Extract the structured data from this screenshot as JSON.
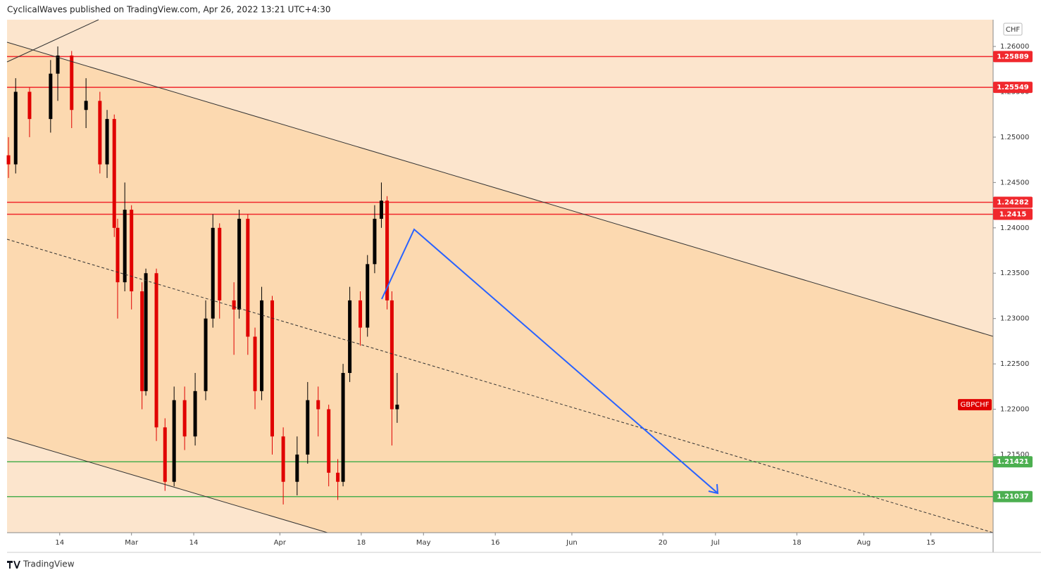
{
  "chart_data": {
    "type": "candlestick",
    "title": "CyclicalWaves published on TradingView.com, Apr 26, 2022 13:21 UTC+4:30",
    "footer": "TradingView",
    "y_unit": "CHF",
    "xlim": [
      34,
      240
    ],
    "xticks": [
      {
        "value": 45,
        "label": "14"
      },
      {
        "value": 60,
        "label": "Mar"
      },
      {
        "value": 73,
        "label": "14"
      },
      {
        "value": 91,
        "label": "Apr"
      },
      {
        "value": 108,
        "label": "18"
      },
      {
        "value": 121,
        "label": "May"
      },
      {
        "value": 136,
        "label": "16"
      },
      {
        "value": 152,
        "label": "Jun"
      },
      {
        "value": 171,
        "label": "20"
      },
      {
        "value": 182,
        "label": "Jul"
      },
      {
        "value": 199,
        "label": "18"
      },
      {
        "value": 213,
        "label": "Aug"
      },
      {
        "value": 227,
        "label": "15"
      }
    ],
    "ylim": [
      1.20639,
      1.26295
    ],
    "yticks": [
      {
        "value": 1.26,
        "label": "1.26000"
      },
      {
        "value": 1.255,
        "label": "1.25500"
      },
      {
        "value": 1.25,
        "label": "1.25000"
      },
      {
        "value": 1.245,
        "label": "1.24500"
      },
      {
        "value": 1.24,
        "label": "1.24000"
      },
      {
        "value": 1.235,
        "label": "1.23500"
      },
      {
        "value": 1.23,
        "label": "1.23000"
      },
      {
        "value": 1.225,
        "label": "1.22500"
      },
      {
        "value": 1.22,
        "label": "1.22000"
      },
      {
        "value": 1.215,
        "label": "1.21500"
      }
    ],
    "levels": [
      {
        "value": 1.25889,
        "color": "#f0282d"
      },
      {
        "value": 1.25549,
        "color": "#f0282d"
      },
      {
        "value": 1.24282,
        "color": "#f0282d"
      },
      {
        "value": 1.2415,
        "color": "#f0282d"
      },
      {
        "value": 1.21421,
        "color": "#4caf50"
      },
      {
        "value": 1.21037,
        "color": "#4caf50"
      }
    ],
    "series": [
      {
        "name": "GBPCHF",
        "label_color": "#e00000",
        "up_color": "#000000",
        "down_color": "#e00000",
        "x": [
          34.3,
          35.8,
          38.7,
          43.1,
          44.6,
          47.5,
          50.5,
          53.4,
          54.9,
          56.4,
          57.1,
          58.6,
          60.0,
          62.2,
          63.0,
          65.2,
          67.0,
          68.9,
          71.1,
          73.3,
          75.5,
          77.0,
          78.4,
          81.4,
          82.5,
          84.3,
          85.8,
          87.2,
          89.4,
          91.7,
          94.6,
          96.8,
          99.0,
          101.2,
          103.1,
          104.2,
          105.6,
          107.8,
          109.3,
          110.8,
          112.2,
          113.4,
          114.4,
          115.5
        ],
        "open": [
          1.248,
          1.247,
          1.255,
          1.252,
          1.257,
          1.259,
          1.253,
          1.254,
          1.247,
          1.252,
          1.24,
          1.234,
          1.242,
          1.233,
          1.222,
          1.235,
          1.218,
          1.212,
          1.221,
          1.217,
          1.222,
          1.23,
          1.24,
          1.232,
          1.231,
          1.241,
          1.228,
          1.222,
          1.232,
          1.217,
          1.212,
          1.215,
          1.221,
          1.22,
          1.213,
          1.212,
          1.224,
          1.232,
          1.229,
          1.236,
          1.241,
          1.243,
          1.232,
          1.22
        ],
        "high": [
          1.25,
          1.2565,
          1.2555,
          1.2585,
          1.26,
          1.2595,
          1.2565,
          1.255,
          1.253,
          1.2525,
          1.241,
          1.245,
          1.2425,
          1.234,
          1.2355,
          1.2355,
          1.219,
          1.2225,
          1.2225,
          1.224,
          1.232,
          1.2415,
          1.2405,
          1.234,
          1.242,
          1.2415,
          1.229,
          1.2335,
          1.2325,
          1.218,
          1.217,
          1.223,
          1.2225,
          1.2205,
          1.2145,
          1.225,
          1.2335,
          1.233,
          1.237,
          1.2425,
          1.245,
          1.2435,
          1.233,
          1.224
        ],
        "low": [
          1.2455,
          1.246,
          1.25,
          1.2505,
          1.254,
          1.251,
          1.251,
          1.246,
          1.2455,
          1.239,
          1.23,
          1.233,
          1.231,
          1.22,
          1.2215,
          1.2165,
          1.211,
          1.2115,
          1.2155,
          1.216,
          1.221,
          1.229,
          1.23,
          1.226,
          1.23,
          1.226,
          1.22,
          1.221,
          1.215,
          1.2095,
          1.2105,
          1.214,
          1.217,
          1.2115,
          1.21,
          1.2115,
          1.223,
          1.227,
          1.228,
          1.235,
          1.24,
          1.231,
          1.216,
          1.2185
        ],
        "close": [
          1.247,
          1.255,
          1.252,
          1.257,
          1.259,
          1.253,
          1.254,
          1.247,
          1.252,
          1.24,
          1.234,
          1.242,
          1.233,
          1.222,
          1.235,
          1.218,
          1.212,
          1.221,
          1.217,
          1.222,
          1.23,
          1.24,
          1.232,
          1.231,
          1.241,
          1.228,
          1.222,
          1.232,
          1.217,
          1.212,
          1.215,
          1.221,
          1.22,
          1.213,
          1.212,
          1.224,
          1.232,
          1.229,
          1.236,
          1.241,
          1.243,
          1.232,
          1.22,
          1.2205
        ]
      }
    ]
  }
}
